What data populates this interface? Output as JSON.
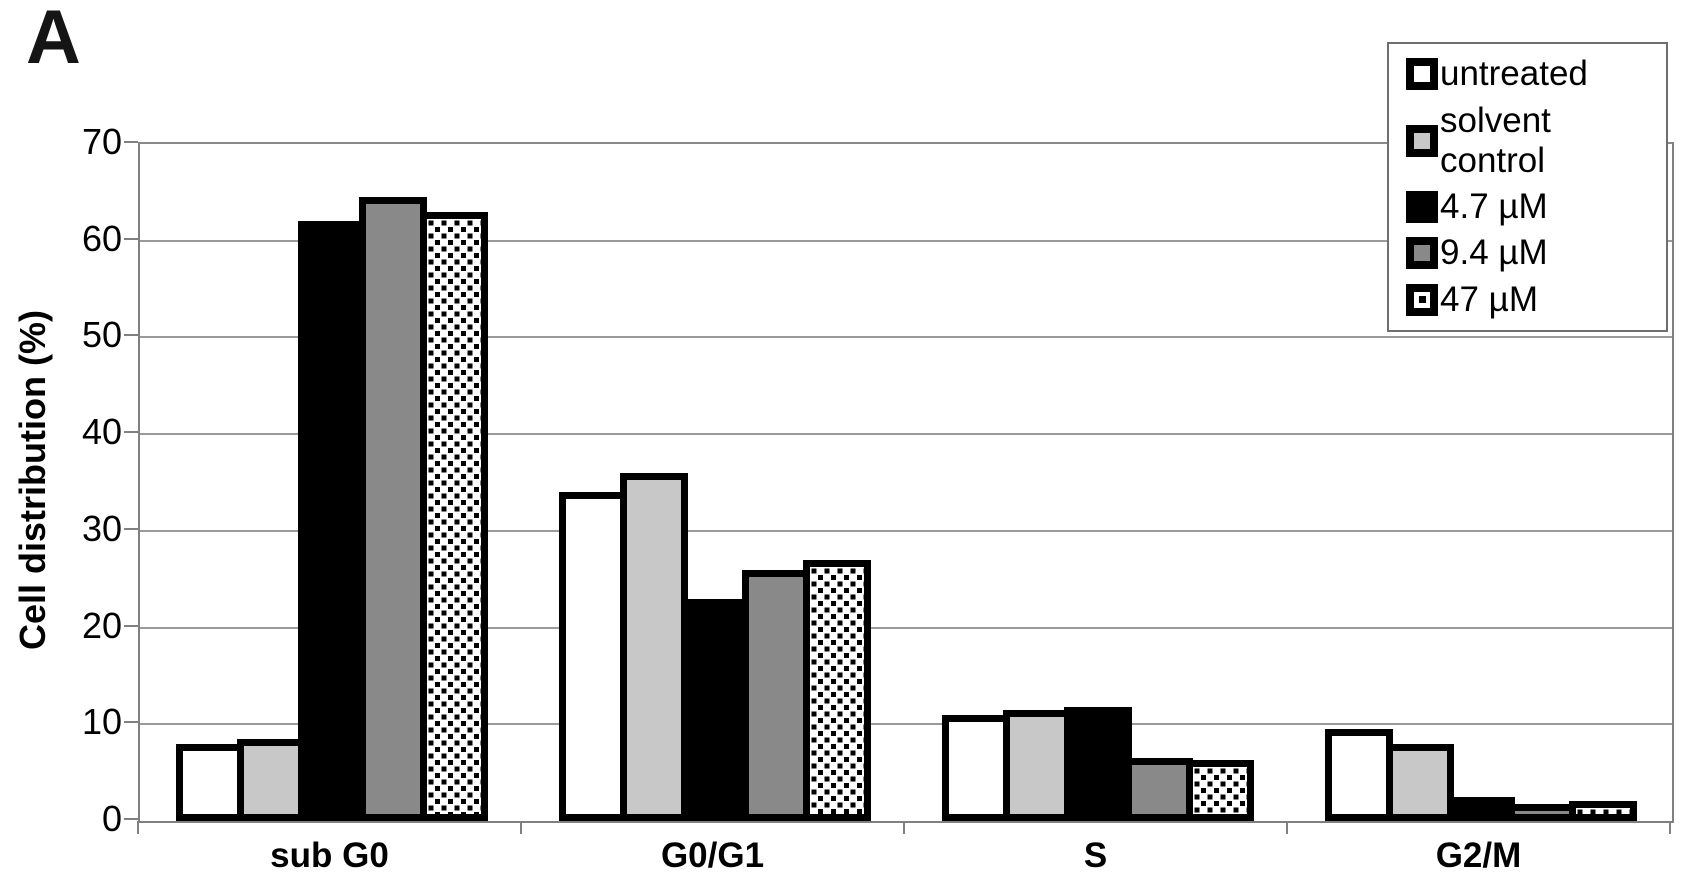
{
  "panel_label": "A",
  "chart_data": {
    "type": "bar",
    "title": "",
    "xlabel": "",
    "ylabel": "Cell distribution (%)",
    "ylim": [
      0,
      70
    ],
    "ytick_step": 10,
    "grid": true,
    "legend_position": "top-right",
    "categories": [
      "sub G0",
      "G0/G1",
      "S",
      "G2/M"
    ],
    "series": [
      {
        "name": "untreated",
        "fill": "#ffffff",
        "pattern": "none",
        "values": [
          8,
          34,
          11,
          9.5
        ]
      },
      {
        "name": "solvent control",
        "fill": "#c8c8c8",
        "pattern": "none",
        "values": [
          8.5,
          36,
          11.5,
          8
        ]
      },
      {
        "name": "4.7 µM",
        "fill": "#000000",
        "pattern": "none",
        "values": [
          62,
          23,
          11.8,
          2.5
        ]
      },
      {
        "name": "9.4 µM",
        "fill": "#898989",
        "pattern": "none",
        "values": [
          64.5,
          26,
          6.5,
          1.8
        ]
      },
      {
        "name": "47 µM",
        "fill": "#ffffff",
        "pattern": "dots",
        "values": [
          63,
          27,
          6.3,
          2.1
        ]
      }
    ],
    "bar_border_color": "#000000",
    "axis_color": "#808080",
    "gridline_color": "#9a9a9a"
  }
}
